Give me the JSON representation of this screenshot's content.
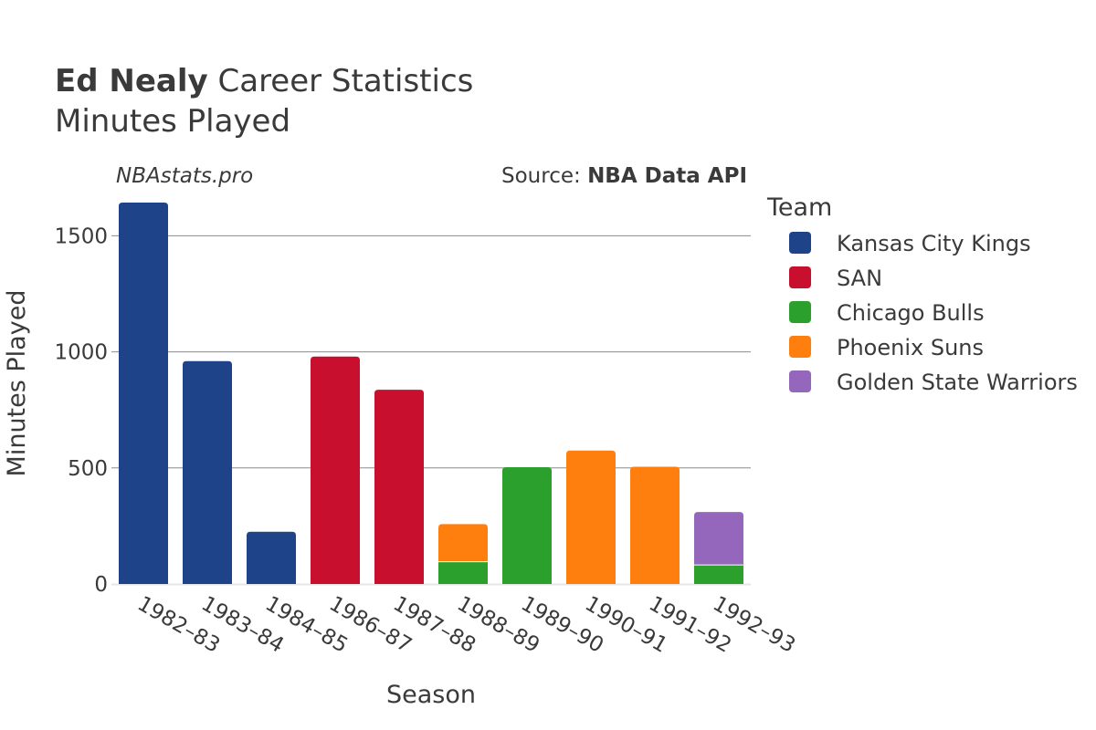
{
  "title": {
    "player": "Ed Nealy",
    "rest": "Career Statistics",
    "subtitle": "Minutes Played"
  },
  "watermark": "NBAstats.pro",
  "source": {
    "prefix": "Source: ",
    "name": "NBA Data API"
  },
  "chart_data": {
    "type": "bar",
    "stacked": true,
    "xlabel": "Season",
    "ylabel": "Minutes Played",
    "ylim": [
      0,
      1650
    ],
    "yticks": [
      0,
      500,
      1000,
      1500
    ],
    "categories": [
      "1982–83",
      "1983–84",
      "1984–85",
      "1986–87",
      "1987–88",
      "1988–89",
      "1989–90",
      "1990–91",
      "1991–92",
      "1992–93"
    ],
    "legend_title": "Team",
    "legend_position": "right",
    "series": [
      {
        "name": "Kansas City Kings",
        "color": "#1f4388",
        "values": [
          1643,
          960,
          225,
          0,
          0,
          0,
          0,
          0,
          0,
          0
        ]
      },
      {
        "name": "SAN",
        "color": "#c8102e",
        "values": [
          0,
          0,
          0,
          980,
          837,
          0,
          0,
          0,
          0,
          0
        ]
      },
      {
        "name": "Chicago Bulls",
        "color": "#2ca02c",
        "values": [
          0,
          0,
          0,
          0,
          0,
          94,
          503,
          0,
          0,
          80
        ]
      },
      {
        "name": "Phoenix Suns",
        "color": "#ff7f0e",
        "values": [
          0,
          0,
          0,
          0,
          0,
          164,
          0,
          575,
          505,
          0
        ]
      },
      {
        "name": "Golden State Warriors",
        "color": "#9467bd",
        "values": [
          0,
          0,
          0,
          0,
          0,
          0,
          0,
          0,
          0,
          230
        ]
      }
    ]
  }
}
